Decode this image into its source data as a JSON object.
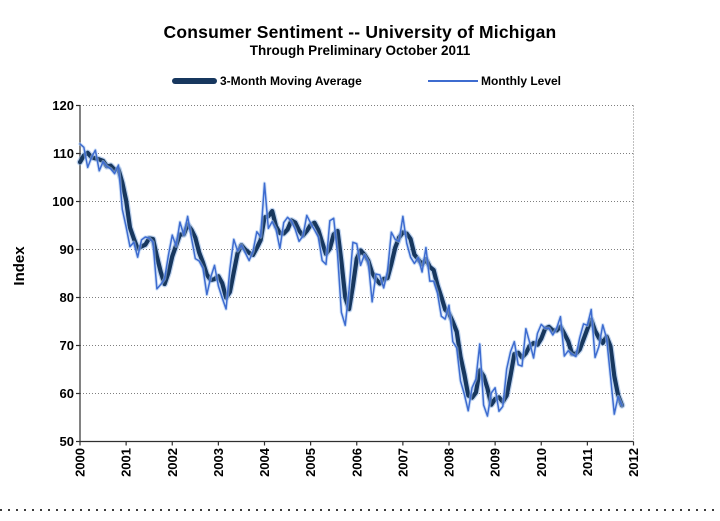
{
  "page": {
    "background_color": "#FFFFFF",
    "footer_dotted_line": true
  },
  "header": {
    "title": "Consumer Sentiment -- University of Michigan",
    "subtitle": "Through Preliminary October 2011"
  },
  "legend": {
    "position": "top",
    "items": [
      {
        "label": "3-Month Moving Average",
        "style": "thick",
        "color": "#17375E"
      },
      {
        "label": "Monthly Level",
        "style": "thin",
        "color": "#3E6CD0"
      }
    ]
  },
  "chart_data": {
    "type": "line",
    "title": "Consumer Sentiment -- University of Michigan",
    "subtitle": "Through Preliminary October 2011",
    "xlabel": "",
    "ylabel": "Index",
    "ylim": [
      50,
      120
    ],
    "yticks": [
      50,
      60,
      70,
      80,
      90,
      100,
      110,
      120
    ],
    "xticks": [
      "2000",
      "2001",
      "2002",
      "2003",
      "2004",
      "2005",
      "2006",
      "2007",
      "2008",
      "2009",
      "2010",
      "2011",
      "2012"
    ],
    "x_start": "2000-01",
    "x_end": "2011-10",
    "grid": {
      "horizontal": true,
      "vertical": false,
      "style": "dotted",
      "color": "#7F7F7F"
    },
    "legend_position": "top",
    "series": [
      {
        "name": "3-Month Moving Average",
        "type": "moving_average",
        "window": 3,
        "source": "Monthly Level",
        "color": "#17375E",
        "stroke_width": 4.2,
        "prior_seed_values": [
          107.2,
          105.4
        ]
      },
      {
        "name": "Monthly Level",
        "type": "line",
        "color": "#3E6CD0",
        "stroke_width": 1.5,
        "values": [
          112.0,
          111.3,
          107.1,
          109.2,
          110.7,
          106.4,
          108.3,
          107.3,
          106.8,
          105.8,
          107.6,
          98.4,
          94.7,
          90.6,
          91.5,
          88.4,
          92.0,
          92.6,
          92.4,
          91.5,
          81.8,
          82.7,
          83.9,
          88.8,
          93.0,
          90.7,
          95.7,
          93.0,
          96.9,
          92.4,
          88.1,
          87.6,
          86.1,
          80.6,
          84.2,
          86.7,
          82.4,
          79.9,
          77.6,
          86.0,
          92.1,
          89.7,
          90.9,
          89.3,
          87.7,
          89.6,
          93.7,
          92.6,
          103.8,
          94.4,
          95.8,
          94.2,
          90.2,
          95.6,
          96.7,
          95.9,
          94.2,
          91.7,
          92.8,
          97.1,
          95.5,
          94.1,
          92.6,
          87.7,
          86.9,
          96.0,
          96.5,
          89.1,
          76.9,
          74.2,
          81.6,
          91.5,
          91.2,
          86.7,
          88.9,
          87.4,
          79.1,
          84.9,
          84.7,
          82.0,
          85.4,
          93.6,
          92.1,
          91.7,
          96.9,
          91.3,
          88.4,
          87.1,
          88.3,
          85.3,
          90.4,
          83.4,
          83.4,
          80.9,
          76.1,
          75.5,
          78.4,
          70.8,
          69.5,
          62.6,
          59.8,
          56.4,
          61.2,
          63.0,
          70.3,
          57.6,
          55.3,
          60.1,
          61.2,
          56.3,
          57.3,
          65.1,
          68.7,
          70.8,
          66.0,
          65.7,
          73.5,
          70.6,
          67.4,
          72.5,
          74.4,
          73.6,
          73.6,
          72.2,
          73.6,
          76.0,
          67.8,
          68.9,
          68.2,
          67.7,
          71.6,
          74.5,
          74.2,
          77.5,
          67.5,
          69.8,
          74.3,
          71.5,
          63.7,
          55.7,
          59.4,
          57.5
        ]
      }
    ]
  }
}
